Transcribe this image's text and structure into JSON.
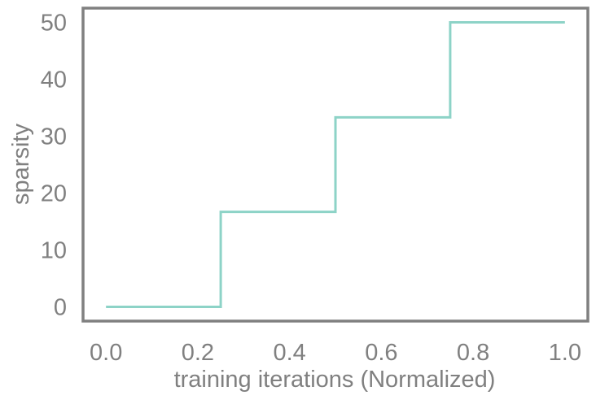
{
  "chart_data": {
    "type": "line",
    "title": "",
    "xlabel": "training iterations (Normalized)",
    "ylabel": "sparsity",
    "xlim": [
      -0.05,
      1.05
    ],
    "ylim": [
      -2.5,
      52.5
    ],
    "xticks": [
      0.0,
      0.2,
      0.4,
      0.6,
      0.8,
      1.0
    ],
    "xtick_labels": [
      "0.0",
      "0.2",
      "0.4",
      "0.6",
      "0.8",
      "1.0"
    ],
    "yticks": [
      0,
      10,
      20,
      30,
      40,
      50
    ],
    "ytick_labels": [
      "0",
      "10",
      "20",
      "30",
      "40",
      "50"
    ],
    "grid": false,
    "legend": "none",
    "colors": {
      "line": "#8dd3c7",
      "axes": "#808080",
      "text": "#808080"
    },
    "series": [
      {
        "x": [
          0.0,
          0.25,
          0.25,
          0.5,
          0.5,
          0.75,
          0.75,
          1.0
        ],
        "y": [
          0,
          0,
          16.7,
          16.7,
          33.3,
          33.3,
          50,
          50
        ]
      }
    ]
  }
}
